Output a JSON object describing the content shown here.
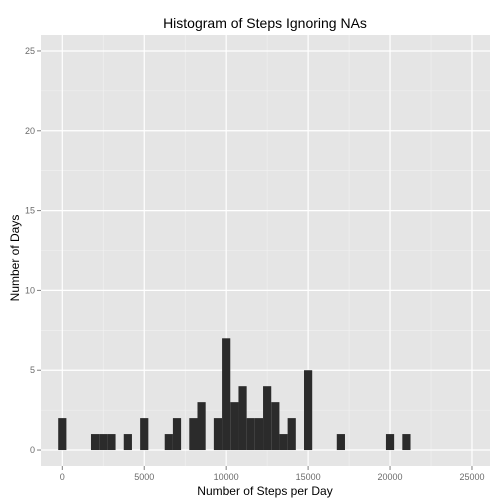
{
  "chart_data": {
    "type": "bar",
    "title": "Histogram of Steps Ignoring NAs",
    "xlabel": "Number of Steps per Day",
    "ylabel": "Number of Days",
    "xlim": [
      -1300,
      26100
    ],
    "ylim": [
      -1,
      26
    ],
    "binwidth": 500,
    "x_ticks": [
      0,
      5000,
      10000,
      15000,
      20000,
      25000
    ],
    "x_tick_labels": [
      "0",
      "5000",
      "10000",
      "15000",
      "20000",
      "25000"
    ],
    "y_ticks": [
      0,
      5,
      10,
      15,
      20,
      25
    ],
    "y_tick_labels": [
      "0",
      "5",
      "10",
      "15",
      "20",
      "25"
    ],
    "grid": true,
    "bars": [
      {
        "x": 0,
        "count": 2
      },
      {
        "x": 2000,
        "count": 1
      },
      {
        "x": 2500,
        "count": 1
      },
      {
        "x": 3000,
        "count": 1
      },
      {
        "x": 4000,
        "count": 1
      },
      {
        "x": 5000,
        "count": 2
      },
      {
        "x": 6500,
        "count": 1
      },
      {
        "x": 7000,
        "count": 2
      },
      {
        "x": 8000,
        "count": 2
      },
      {
        "x": 8500,
        "count": 3
      },
      {
        "x": 9500,
        "count": 2
      },
      {
        "x": 10000,
        "count": 7
      },
      {
        "x": 10500,
        "count": 3
      },
      {
        "x": 11000,
        "count": 4
      },
      {
        "x": 11500,
        "count": 2
      },
      {
        "x": 12000,
        "count": 2
      },
      {
        "x": 12500,
        "count": 4
      },
      {
        "x": 13000,
        "count": 3
      },
      {
        "x": 13500,
        "count": 1
      },
      {
        "x": 14000,
        "count": 2
      },
      {
        "x": 15000,
        "count": 5
      },
      {
        "x": 17000,
        "count": 1
      },
      {
        "x": 20000,
        "count": 1
      },
      {
        "x": 21000,
        "count": 1
      }
    ],
    "colors": {
      "panel": "#e5e5e5",
      "grid_major": "#ffffff",
      "grid_minor": "#f2f2f2",
      "bar": "#2b2b2b",
      "tick": "#7f7f7f"
    }
  }
}
